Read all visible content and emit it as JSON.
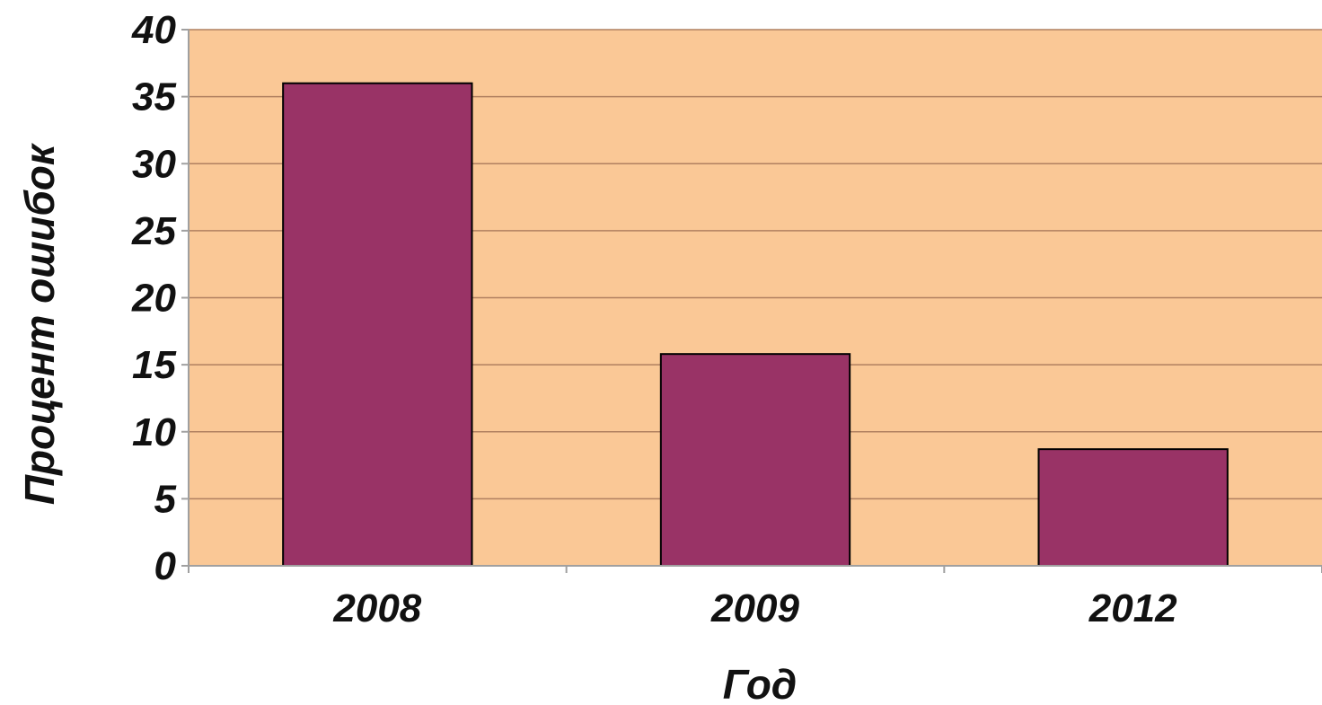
{
  "chart_data": {
    "type": "bar",
    "categories": [
      "2008",
      "2009",
      "2012"
    ],
    "values": [
      36,
      15.8,
      8.7
    ],
    "title": "",
    "xlabel": "Год",
    "ylabel": "Процент ошибок",
    "ylim": [
      0,
      40
    ],
    "yticks": [
      "0",
      "5",
      "10",
      "15",
      "20",
      "25",
      "30",
      "35",
      "40"
    ],
    "grid": true,
    "legend": "none",
    "colors": {
      "plot_background": "#FAC896",
      "bar_fill": "#993366",
      "bar_stroke": "#000000",
      "gridline": "#b08060",
      "axis": "#a0a0a0"
    }
  }
}
